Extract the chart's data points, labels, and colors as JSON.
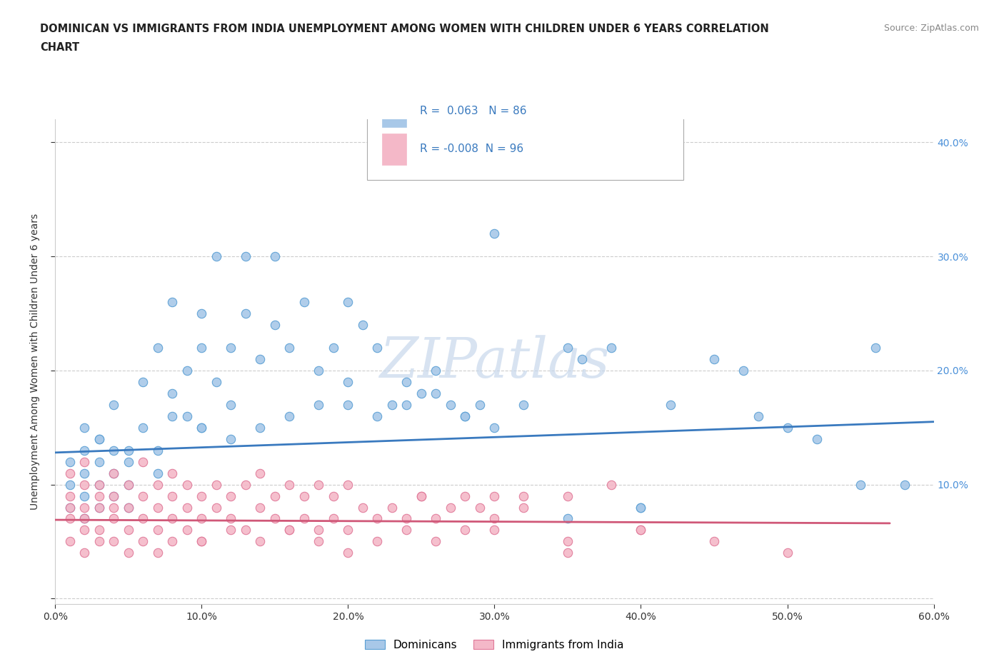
{
  "title_line1": "DOMINICAN VS IMMIGRANTS FROM INDIA UNEMPLOYMENT AMONG WOMEN WITH CHILDREN UNDER 6 YEARS CORRELATION",
  "title_line2": "CHART",
  "source": "Source: ZipAtlas.com",
  "ylabel": "Unemployment Among Women with Children Under 6 years",
  "xlim": [
    0.0,
    0.6
  ],
  "ylim": [
    -0.005,
    0.42
  ],
  "xticks": [
    0.0,
    0.1,
    0.2,
    0.3,
    0.4,
    0.5,
    0.6
  ],
  "xticklabels": [
    "0.0%",
    "10.0%",
    "20.0%",
    "30.0%",
    "40.0%",
    "50.0%",
    "60.0%"
  ],
  "yticks": [
    0.0,
    0.1,
    0.2,
    0.3,
    0.4
  ],
  "yticklabels": [
    "",
    "10.0%",
    "20.0%",
    "30.0%",
    "40.0%"
  ],
  "blue_color": "#a8c8e8",
  "blue_edge_color": "#5a9fd4",
  "pink_color": "#f4b8c8",
  "pink_edge_color": "#e07898",
  "blue_line_color": "#3a7abf",
  "pink_line_color": "#d05878",
  "watermark": "ZIPatlas",
  "legend_R_blue": "R =  0.063",
  "legend_N_blue": "N = 86",
  "legend_R_pink": "R = -0.008",
  "legend_N_pink": "N = 96",
  "legend_label_blue": "Dominicans",
  "legend_label_pink": "Immigrants from India",
  "blue_scatter_x": [
    0.01,
    0.01,
    0.01,
    0.02,
    0.02,
    0.02,
    0.02,
    0.02,
    0.03,
    0.03,
    0.03,
    0.03,
    0.04,
    0.04,
    0.04,
    0.04,
    0.05,
    0.05,
    0.05,
    0.06,
    0.06,
    0.07,
    0.07,
    0.07,
    0.08,
    0.08,
    0.09,
    0.09,
    0.1,
    0.1,
    0.1,
    0.11,
    0.11,
    0.12,
    0.12,
    0.13,
    0.13,
    0.14,
    0.15,
    0.15,
    0.16,
    0.17,
    0.18,
    0.19,
    0.2,
    0.2,
    0.21,
    0.22,
    0.23,
    0.24,
    0.25,
    0.26,
    0.27,
    0.28,
    0.29,
    0.3,
    0.32,
    0.35,
    0.36,
    0.38,
    0.4,
    0.42,
    0.45,
    0.47,
    0.48,
    0.5,
    0.52,
    0.55,
    0.56,
    0.58,
    0.03,
    0.05,
    0.08,
    0.1,
    0.12,
    0.14,
    0.16,
    0.18,
    0.2,
    0.22,
    0.24,
    0.26,
    0.28,
    0.3,
    0.35,
    0.4
  ],
  "blue_scatter_y": [
    0.1,
    0.12,
    0.08,
    0.11,
    0.09,
    0.13,
    0.15,
    0.07,
    0.1,
    0.12,
    0.08,
    0.14,
    0.11,
    0.09,
    0.13,
    0.17,
    0.1,
    0.08,
    0.12,
    0.15,
    0.19,
    0.13,
    0.11,
    0.22,
    0.18,
    0.26,
    0.16,
    0.2,
    0.15,
    0.22,
    0.25,
    0.19,
    0.3,
    0.17,
    0.22,
    0.25,
    0.3,
    0.21,
    0.24,
    0.3,
    0.22,
    0.26,
    0.2,
    0.22,
    0.19,
    0.26,
    0.24,
    0.22,
    0.17,
    0.19,
    0.18,
    0.2,
    0.17,
    0.16,
    0.17,
    0.15,
    0.17,
    0.22,
    0.21,
    0.22,
    0.08,
    0.17,
    0.21,
    0.2,
    0.16,
    0.15,
    0.14,
    0.1,
    0.22,
    0.1,
    0.14,
    0.13,
    0.16,
    0.15,
    0.14,
    0.15,
    0.16,
    0.17,
    0.17,
    0.16,
    0.17,
    0.18,
    0.16,
    0.32,
    0.07,
    0.08
  ],
  "pink_scatter_x": [
    0.01,
    0.01,
    0.01,
    0.01,
    0.01,
    0.02,
    0.02,
    0.02,
    0.02,
    0.02,
    0.02,
    0.03,
    0.03,
    0.03,
    0.03,
    0.03,
    0.04,
    0.04,
    0.04,
    0.04,
    0.04,
    0.05,
    0.05,
    0.05,
    0.05,
    0.06,
    0.06,
    0.06,
    0.06,
    0.07,
    0.07,
    0.07,
    0.07,
    0.08,
    0.08,
    0.08,
    0.08,
    0.09,
    0.09,
    0.09,
    0.1,
    0.1,
    0.1,
    0.11,
    0.11,
    0.12,
    0.12,
    0.13,
    0.13,
    0.14,
    0.14,
    0.15,
    0.15,
    0.16,
    0.16,
    0.17,
    0.17,
    0.18,
    0.18,
    0.19,
    0.19,
    0.2,
    0.2,
    0.21,
    0.22,
    0.23,
    0.24,
    0.25,
    0.26,
    0.27,
    0.28,
    0.29,
    0.3,
    0.32,
    0.35,
    0.38,
    0.1,
    0.12,
    0.14,
    0.16,
    0.18,
    0.2,
    0.22,
    0.24,
    0.26,
    0.3,
    0.35,
    0.4,
    0.45,
    0.5,
    0.25,
    0.28,
    0.3,
    0.32,
    0.35,
    0.4
  ],
  "pink_scatter_y": [
    0.07,
    0.09,
    0.05,
    0.11,
    0.08,
    0.06,
    0.08,
    0.1,
    0.12,
    0.04,
    0.07,
    0.06,
    0.08,
    0.1,
    0.05,
    0.09,
    0.07,
    0.09,
    0.05,
    0.08,
    0.11,
    0.06,
    0.08,
    0.1,
    0.04,
    0.07,
    0.09,
    0.05,
    0.12,
    0.06,
    0.08,
    0.1,
    0.04,
    0.07,
    0.09,
    0.05,
    0.11,
    0.06,
    0.08,
    0.1,
    0.07,
    0.09,
    0.05,
    0.08,
    0.1,
    0.07,
    0.09,
    0.06,
    0.1,
    0.08,
    0.11,
    0.07,
    0.09,
    0.06,
    0.1,
    0.07,
    0.09,
    0.06,
    0.1,
    0.07,
    0.09,
    0.06,
    0.1,
    0.08,
    0.07,
    0.08,
    0.07,
    0.09,
    0.07,
    0.08,
    0.06,
    0.08,
    0.07,
    0.09,
    0.09,
    0.1,
    0.05,
    0.06,
    0.05,
    0.06,
    0.05,
    0.04,
    0.05,
    0.06,
    0.05,
    0.06,
    0.04,
    0.06,
    0.05,
    0.04,
    0.09,
    0.09,
    0.09,
    0.08,
    0.05,
    0.06
  ],
  "blue_trend_x": [
    0.0,
    0.6
  ],
  "blue_trend_y": [
    0.128,
    0.155
  ],
  "pink_trend_x": [
    0.0,
    0.57
  ],
  "pink_trend_y": [
    0.069,
    0.066
  ]
}
